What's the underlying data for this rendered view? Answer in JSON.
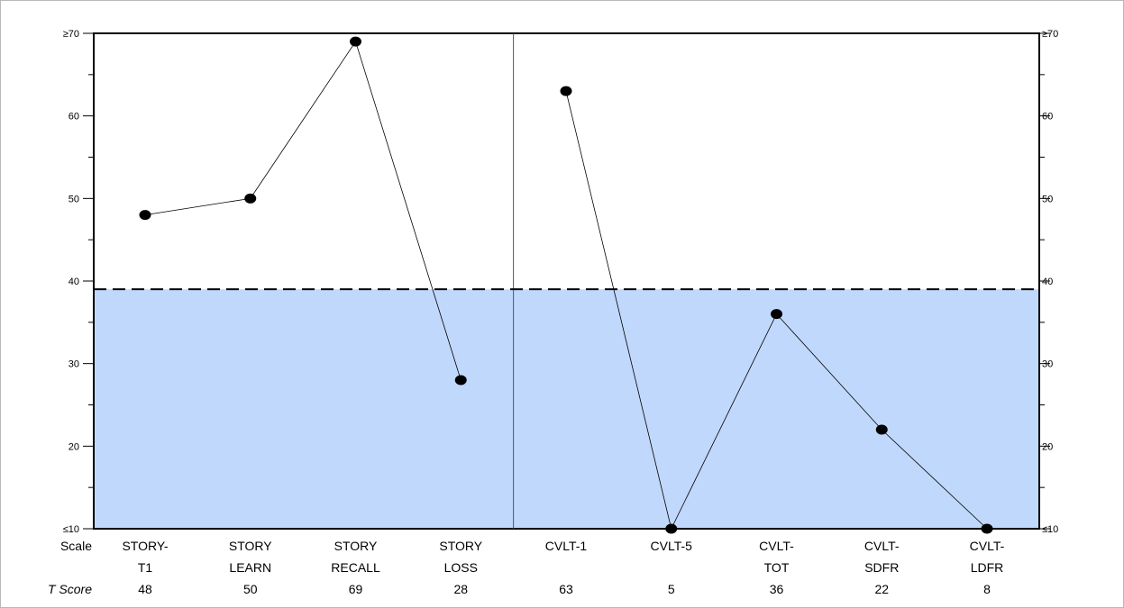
{
  "chart_data": {
    "type": "line",
    "categories": [
      [
        "STORY-",
        "T1"
      ],
      [
        "STORY",
        "LEARN"
      ],
      [
        "STORY",
        "RECALL"
      ],
      [
        "STORY",
        "LOSS"
      ],
      [
        "CVLT-1",
        ""
      ],
      [
        "CVLT-5",
        ""
      ],
      [
        "CVLT-",
        "TOT"
      ],
      [
        "CVLT-",
        "SDFR"
      ],
      [
        "CVLT-",
        "LDFR"
      ]
    ],
    "series": [
      {
        "values": [
          48,
          50,
          69,
          28,
          63,
          5,
          36,
          22,
          8
        ]
      }
    ],
    "segments": [
      [
        0,
        3
      ],
      [
        4,
        8
      ]
    ],
    "t_scores": [
      "48",
      "50",
      "69",
      "28",
      "63",
      "5",
      "36",
      "22",
      "8"
    ],
    "ylim": [
      10,
      70
    ],
    "y_tick_labels": [
      "≤10",
      "20",
      "30",
      "40",
      "50",
      "60",
      "≥70"
    ],
    "y_tick_values": [
      10,
      20,
      30,
      40,
      50,
      60,
      70
    ],
    "threshold": 39,
    "shaded_band": [
      10,
      39
    ],
    "divider_between": [
      3,
      4
    ],
    "row_labels": {
      "scale": "Scale",
      "t_score": "T Score"
    },
    "colors": {
      "band": "#c0d8fc",
      "line": "#000000",
      "point": "#000000"
    }
  }
}
